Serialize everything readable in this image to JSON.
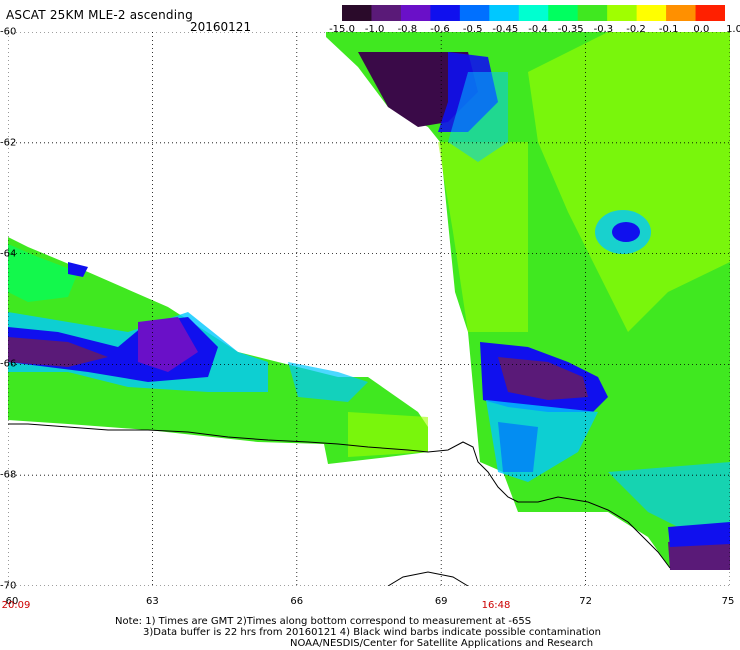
{
  "header": {
    "title": "ASCAT 25KM MLE-2 ascending",
    "date": "20160121"
  },
  "colorbar": {
    "labels": [
      "-15.0",
      "-1.0",
      "-0.8",
      "-0.6",
      "-0.5",
      "-0.45",
      "-0.4",
      "-0.35",
      "-0.3",
      "-0.2",
      "-0.1",
      "0.0",
      "1.0"
    ],
    "colors": [
      "#2a0a2a",
      "#5a1a78",
      "#6a10c8",
      "#1010ee",
      "#0070ff",
      "#00c8ff",
      "#00ffd0",
      "#00ff60",
      "#40e820",
      "#a0ff00",
      "#ffff00",
      "#ff9000",
      "#ff2000"
    ]
  },
  "axes": {
    "lat_labels": [
      "-60",
      "-62",
      "-64",
      "-66",
      "-68",
      "-70"
    ],
    "lat_values": [
      -60,
      -62,
      -64,
      -66,
      -68,
      -70
    ],
    "lon_labels": [
      "60",
      "63",
      "66",
      "69",
      "72",
      "75"
    ],
    "lon_values": [
      60,
      63,
      66,
      69,
      72,
      75
    ],
    "time_left": "20:09",
    "time_mid": "16:48"
  },
  "notes": {
    "line1": "Note: 1) Times are GMT 2)Times along bottom correspond to measurement at -65S",
    "line2": "3)Data buffer is 22 hrs from 20160121 4) Black wind barbs indicate possible contamination",
    "line3": "NOAA/NESDIS/Center for Satellite Applications and Research"
  }
}
